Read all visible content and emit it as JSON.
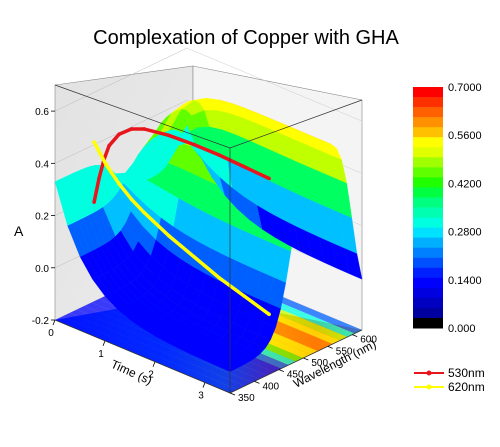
{
  "chart_data": {
    "type": "surface3d",
    "title": "Complexation of Copper with GHA",
    "x_axis": {
      "label": "Time (s)",
      "ticks": [
        "0",
        "1",
        "2",
        "3"
      ],
      "range": [
        0,
        3.5
      ]
    },
    "y_axis": {
      "label": "Wavelength (nm)",
      "ticks": [
        "350",
        "400",
        "450",
        "500",
        "550",
        "600"
      ],
      "range": [
        350,
        620
      ]
    },
    "z_axis": {
      "label": "A",
      "ticks": [
        "-0.2",
        "0.0",
        "0.2",
        "0.4",
        "0.6"
      ],
      "range": [
        -0.2,
        0.7
      ]
    },
    "colorbar": {
      "ticks": [
        "0.000",
        "0.1400",
        "0.2800",
        "0.4200",
        "0.5600",
        "0.7000"
      ],
      "range": [
        0,
        0.7
      ],
      "colors": [
        "#000000",
        "#0000ff",
        "#0080ff",
        "#00ffff",
        "#00ff80",
        "#00ff00",
        "#80ff00",
        "#ffff00",
        "#ff8000",
        "#ff0000"
      ]
    },
    "surface": {
      "description_values": "absorbance peak near 560 nm rising with time",
      "time": [
        0,
        0.5,
        1,
        1.5,
        2,
        2.5,
        3,
        3.5
      ],
      "wavelength": [
        350,
        400,
        450,
        500,
        550,
        600,
        620
      ],
      "peak_center_nm": 560,
      "peak_height": 0.65,
      "baseline_start": 0.33,
      "baseline_min": -0.12
    },
    "series": [
      {
        "name": "530nm",
        "color": "#e8161c",
        "time": [
          0,
          0.1,
          0.2,
          0.3,
          0.5,
          0.75,
          1.0,
          1.5,
          2.0,
          2.5,
          3.0,
          3.5
        ],
        "values": [
          0.18,
          0.28,
          0.36,
          0.42,
          0.48,
          0.52,
          0.54,
          0.555,
          0.56,
          0.56,
          0.555,
          0.55
        ]
      },
      {
        "name": "620nm",
        "color": "#ffff00",
        "time": [
          0,
          0.25,
          0.5,
          0.75,
          1.0,
          1.5,
          2.0,
          2.5,
          3.0,
          3.5
        ],
        "values": [
          0.41,
          0.34,
          0.29,
          0.25,
          0.22,
          0.17,
          0.13,
          0.09,
          0.06,
          0.03
        ]
      }
    ],
    "legend_position": "bottom-right"
  }
}
